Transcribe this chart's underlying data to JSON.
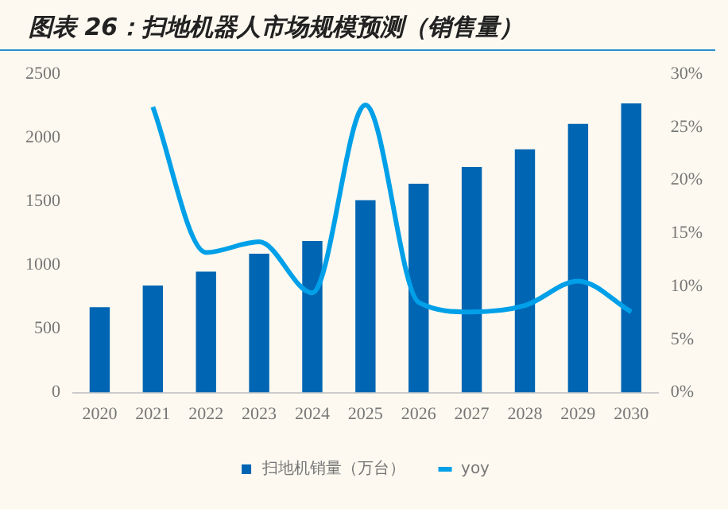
{
  "chart_data": {
    "type": "bar",
    "title": "图表 26：扫地机器人市场规模预测（销售量）",
    "categories": [
      "2020",
      "2021",
      "2022",
      "2023",
      "2024",
      "2025",
      "2026",
      "2027",
      "2028",
      "2029",
      "2030"
    ],
    "series": [
      {
        "name": "扫地机销量（万台）",
        "color": "#0066b3",
        "values": [
          670,
          840,
          950,
          1090,
          1190,
          1510,
          1640,
          1770,
          1910,
          2110,
          2270
        ]
      },
      {
        "name": "yoy",
        "type": "line",
        "axis": "y2",
        "color": "#00a0e9",
        "values": [
          null,
          26.9,
          13.2,
          14.2,
          9.4,
          27.1,
          8.5,
          7.6,
          8.2,
          10.5,
          7.6
        ]
      }
    ],
    "ylim": [
      0,
      2500
    ],
    "yticks": [
      0,
      500,
      1000,
      1500,
      2000,
      2500
    ],
    "y2lim": [
      0,
      30
    ],
    "y2ticks": [
      {
        "value": 0,
        "label": "0%"
      },
      {
        "value": 5,
        "label": "5%"
      },
      {
        "value": 10,
        "label": "10%"
      },
      {
        "value": 15,
        "label": "15%"
      },
      {
        "value": 20,
        "label": "20%"
      },
      {
        "value": 25,
        "label": "25%"
      },
      {
        "value": 30,
        "label": "30%"
      }
    ],
    "grid": false,
    "legend": "bottom",
    "marker": "none"
  }
}
